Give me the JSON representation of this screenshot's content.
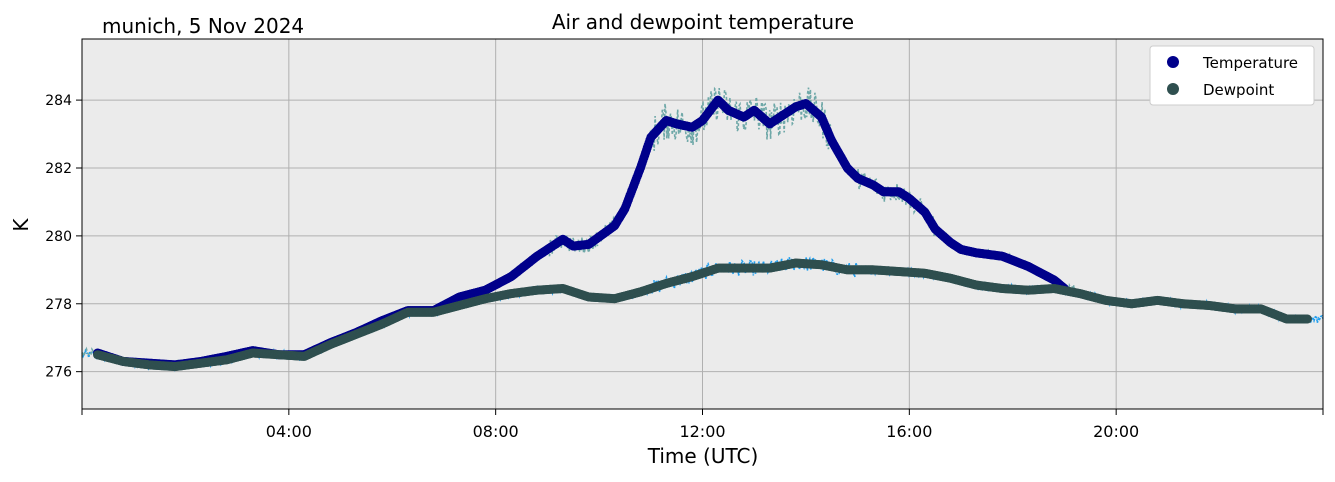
{
  "header": {
    "location_date": "munich, 5 Nov 2024"
  },
  "chart_data": {
    "type": "line",
    "title": "Air and dewpoint temperature",
    "xlabel": "Time (UTC)",
    "ylabel": "K",
    "xlim": [
      0,
      24
    ],
    "ylim": [
      274.9,
      285.8
    ],
    "x_ticks": [
      {
        "value": 4,
        "label": "04:00"
      },
      {
        "value": 8,
        "label": "08:00"
      },
      {
        "value": 12,
        "label": "12:00"
      },
      {
        "value": 16,
        "label": "16:00"
      },
      {
        "value": 20,
        "label": "20:00"
      }
    ],
    "y_ticks": [
      {
        "value": 276,
        "label": "276"
      },
      {
        "value": 278,
        "label": "278"
      },
      {
        "value": 280,
        "label": "280"
      },
      {
        "value": 282,
        "label": "282"
      },
      {
        "value": 284,
        "label": "284"
      }
    ],
    "grid": true,
    "background_color": "#ebebeb",
    "legend_position": "top-right",
    "series": [
      {
        "name": "Temperature",
        "style": "markers",
        "color": "#00008b",
        "raw_color": "#6fa8a8",
        "x": [
          0.3,
          0.8,
          1.3,
          1.8,
          2.3,
          2.8,
          3.3,
          3.8,
          4.3,
          4.8,
          5.3,
          5.8,
          6.3,
          6.8,
          7.3,
          7.8,
          8.3,
          8.8,
          9.3,
          9.5,
          9.8,
          10.3,
          10.5,
          10.8,
          11.0,
          11.3,
          11.5,
          11.8,
          12.0,
          12.3,
          12.5,
          12.8,
          13.0,
          13.3,
          13.5,
          13.8,
          14.0,
          14.3,
          14.5,
          14.8,
          15.0,
          15.3,
          15.5,
          15.8,
          16.0,
          16.3,
          16.5,
          16.8,
          17.0,
          17.3,
          17.8,
          18.3,
          18.8,
          19.0
        ],
        "y": [
          276.55,
          276.3,
          276.25,
          276.2,
          276.3,
          276.45,
          276.62,
          276.5,
          276.5,
          276.85,
          277.15,
          277.5,
          277.8,
          277.8,
          278.2,
          278.4,
          278.8,
          279.4,
          279.9,
          279.7,
          279.75,
          280.3,
          280.8,
          282.0,
          282.9,
          283.4,
          283.3,
          283.2,
          283.4,
          284.0,
          283.7,
          283.5,
          283.7,
          283.3,
          283.5,
          283.8,
          283.9,
          283.5,
          282.8,
          282.0,
          281.7,
          281.5,
          281.3,
          281.3,
          281.1,
          280.7,
          280.2,
          279.8,
          279.6,
          279.5,
          279.4,
          279.1,
          278.7,
          278.45
        ]
      },
      {
        "name": "Dewpoint",
        "style": "markers",
        "color": "#2f4f4f",
        "raw_color": "#1f9eee",
        "x": [
          0.3,
          0.8,
          1.3,
          1.8,
          2.3,
          2.8,
          3.3,
          3.8,
          4.3,
          4.8,
          5.3,
          5.8,
          6.3,
          6.8,
          7.3,
          7.8,
          8.3,
          8.8,
          9.3,
          9.8,
          10.3,
          10.8,
          11.3,
          11.8,
          12.3,
          12.8,
          13.3,
          13.8,
          14.3,
          14.8,
          15.3,
          15.8,
          16.3,
          16.8,
          17.3,
          17.8,
          18.3,
          18.8,
          19.3,
          19.8,
          20.3,
          20.8,
          21.3,
          21.8,
          22.3,
          22.8,
          23.3,
          23.7
        ],
        "y": [
          276.5,
          276.3,
          276.2,
          276.15,
          276.25,
          276.35,
          276.55,
          276.5,
          276.45,
          276.8,
          277.1,
          277.4,
          277.75,
          277.75,
          277.95,
          278.15,
          278.3,
          278.4,
          278.45,
          278.2,
          278.15,
          278.35,
          278.6,
          278.8,
          279.05,
          279.05,
          279.05,
          279.2,
          279.15,
          279.0,
          279.0,
          278.95,
          278.9,
          278.75,
          278.55,
          278.45,
          278.4,
          278.45,
          278.3,
          278.1,
          278.0,
          278.1,
          278.0,
          277.95,
          277.85,
          277.85,
          277.55,
          277.55
        ]
      }
    ]
  }
}
